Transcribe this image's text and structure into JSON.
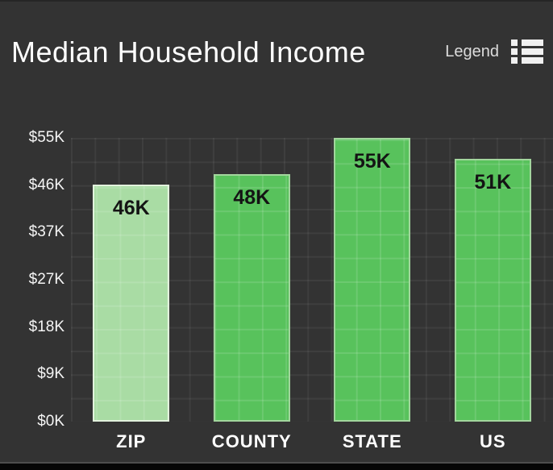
{
  "header": {
    "title": "Median Household Income",
    "legend_label": "Legend",
    "legend_icon": "list-icon"
  },
  "colors": {
    "background": "#333333",
    "grid_line_overlay": "rgba(255,255,255,0.055)",
    "bar_fill": "#58c25c",
    "bar_border": "#a2d69d",
    "bar_highlight_fill": "#a9dca4",
    "bar_highlight_border": "#e2f2dd",
    "bar_value_text": "#141414",
    "axis_text": "#f5f5f5",
    "title_text": "#ffffff",
    "legend_text": "#dcdcdc"
  },
  "chart_data": {
    "type": "bar",
    "title": "Median Household Income",
    "unit": "USD thousands",
    "categories": [
      "ZIP",
      "COUNTY",
      "STATE",
      "US"
    ],
    "values": [
      46,
      48,
      55,
      51
    ],
    "bar_labels": [
      "46K",
      "48K",
      "55K",
      "51K"
    ],
    "y_tick_labels": [
      "$0K",
      "$9K",
      "$18K",
      "$27K",
      "$37K",
      "$46K",
      "$55K"
    ],
    "ylim": [
      0,
      55
    ],
    "grid": true,
    "legend_position": "top-right",
    "highlighted_index": 0
  }
}
